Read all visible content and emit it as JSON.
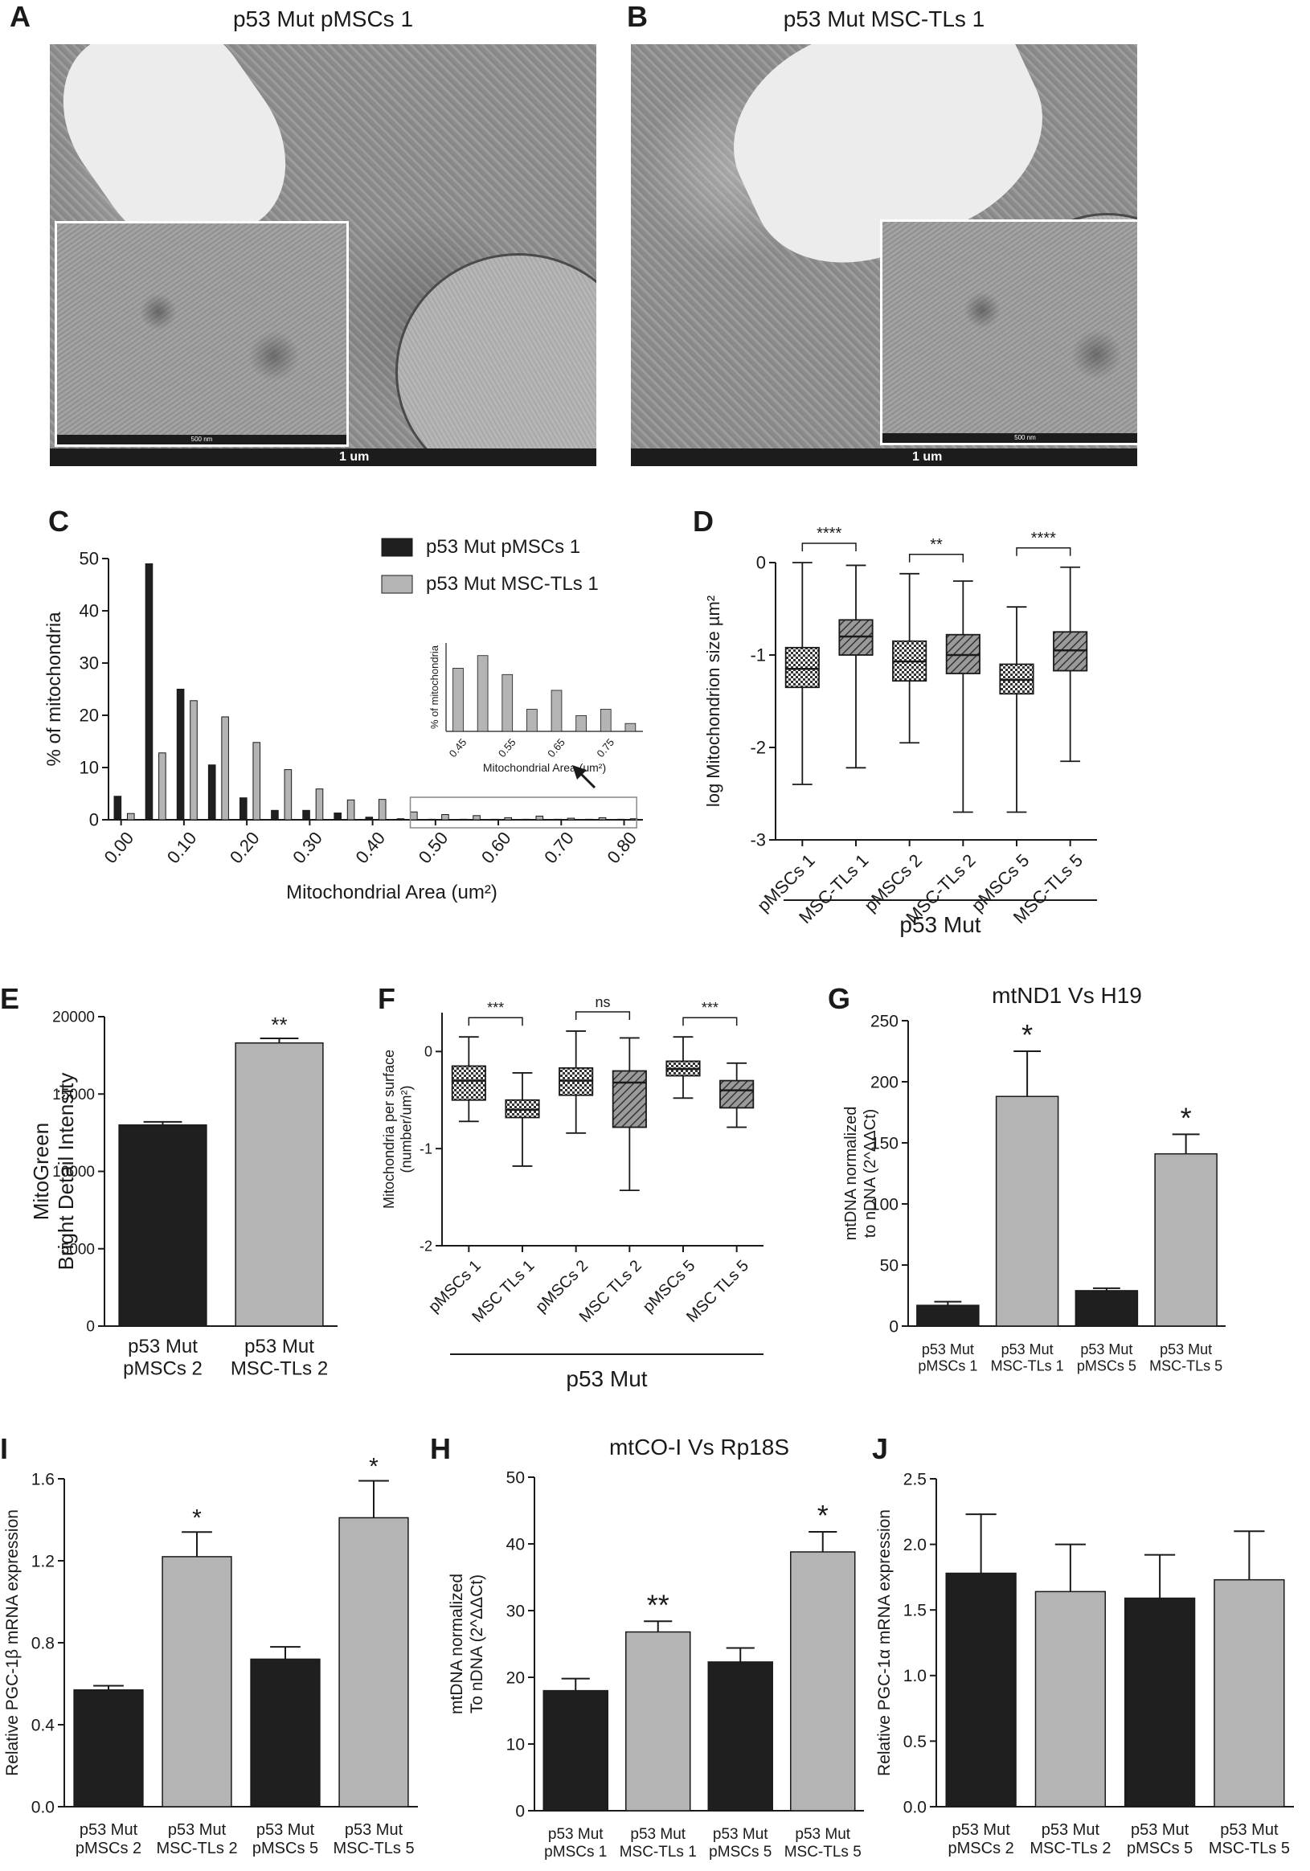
{
  "panels": {
    "A": {
      "label": "A",
      "title": "p53 Mut pMSCs 1",
      "scale": "1 um",
      "inset_scale": "500 nm"
    },
    "B": {
      "label": "B",
      "title": "p53 Mut MSC-TLs 1",
      "scale": "1 um",
      "inset_scale": "500 nm"
    },
    "C": {
      "label": "C"
    },
    "D": {
      "label": "D"
    },
    "E": {
      "label": "E"
    },
    "F": {
      "label": "F"
    },
    "G": {
      "label": "G"
    },
    "I": {
      "label": "I"
    },
    "H": {
      "label": "H"
    },
    "J": {
      "label": "J"
    }
  },
  "colors": {
    "dark": "#1f1f1f",
    "light": "#b4b4b4",
    "axis": "#1a1a1a"
  },
  "chart_data": [
    {
      "id": "C",
      "type": "bar",
      "categories": [
        "0.00",
        "0.05",
        "0.10",
        "0.15",
        "0.20",
        "0.25",
        "0.30",
        "0.35",
        "0.40",
        "0.45",
        "0.50",
        "0.55",
        "0.60",
        "0.65",
        "0.70",
        "0.75",
        "0.80"
      ],
      "tick_labels": [
        "0.00",
        "0.10",
        "0.20",
        "0.30",
        "0.40",
        "0.50",
        "0.60",
        "0.70",
        "0.80"
      ],
      "series": [
        {
          "name": "p53 Mut pMSCs 1",
          "color": "#1f1f1f",
          "values": [
            4.5,
            49,
            25,
            10.5,
            4.2,
            1.8,
            1.8,
            1.3,
            0.5,
            0.2,
            0.1,
            0.1,
            0.1,
            0.1,
            0.1,
            0.1,
            0.1
          ]
        },
        {
          "name": "p53 Mut MSC-TLs 1",
          "color": "#b4b4b4",
          "values": [
            1.2,
            12.8,
            22.8,
            19.7,
            14.8,
            9.6,
            5.9,
            3.8,
            3.9,
            1.5,
            1.0,
            0.8,
            0.4,
            0.7,
            0.3,
            0.4,
            0.2
          ]
        }
      ],
      "xlabel": "Mitochondrial Area (um²)",
      "ylabel": "% of mitochondria",
      "yticks": [
        "0",
        "10",
        "20",
        "30",
        "40",
        "50"
      ],
      "ylim": [
        0,
        50
      ],
      "legend": "top-right",
      "inset": {
        "type": "bar",
        "categories": [
          "0.45",
          "0.50",
          "0.55",
          "0.60",
          "0.65",
          "0.70",
          "0.75",
          "0.80"
        ],
        "tick_labels": [
          "0.45",
          "0.55",
          "0.65",
          "0.75"
        ],
        "values": [
          20,
          24,
          18,
          7,
          13,
          5,
          7,
          2.5
        ],
        "xlabel": "Mitochondrial Area (um²)",
        "ylabel": "% of mitochondria",
        "ylim": [
          0,
          28
        ]
      }
    },
    {
      "id": "D",
      "type": "boxplot",
      "categories": [
        "pMSCs 1",
        "MSC-TLs 1",
        "pMSCs 2",
        "MSC-TLs 2",
        "pMSCs 5",
        "MSC-TLs 5"
      ],
      "boxes": [
        {
          "min": -2.4,
          "q1": -1.35,
          "median": -1.15,
          "q3": -0.92,
          "max": 0.0,
          "fill": "dots"
        },
        {
          "min": -2.22,
          "q1": -1.0,
          "median": -0.8,
          "q3": -0.62,
          "max": -0.03,
          "fill": "hatch"
        },
        {
          "min": -1.95,
          "q1": -1.28,
          "median": -1.07,
          "q3": -0.85,
          "max": -0.12,
          "fill": "dots"
        },
        {
          "min": -2.7,
          "q1": -1.2,
          "median": -1.0,
          "q3": -0.78,
          "max": -0.2,
          "fill": "hatch"
        },
        {
          "min": -2.7,
          "q1": -1.42,
          "median": -1.27,
          "q3": -1.1,
          "max": -0.48,
          "fill": "dots"
        },
        {
          "min": -2.15,
          "q1": -1.17,
          "median": -0.95,
          "q3": -0.75,
          "max": -0.05,
          "fill": "hatch"
        }
      ],
      "significance": [
        {
          "from": 0,
          "to": 1,
          "label": "****"
        },
        {
          "from": 2,
          "to": 3,
          "label": "**"
        },
        {
          "from": 4,
          "to": 5,
          "label": "****"
        }
      ],
      "ylabel": "log Mitochondrion size µm²",
      "yticks": [
        "0",
        "-1",
        "-2",
        "-3"
      ],
      "ylim": [
        -3,
        0
      ],
      "group_label": "p53 Mut"
    },
    {
      "id": "E",
      "type": "bar",
      "categories": [
        "p53 Mut\npMSCs 2",
        "p53 Mut\nMSC-TLs 2"
      ],
      "values": [
        13000,
        18300
      ],
      "errors": [
        200,
        300
      ],
      "colors": [
        "#1f1f1f",
        "#b4b4b4"
      ],
      "significance": [
        "",
        "**"
      ],
      "ylabel": "MitoGreen\nBright Detail Intensity",
      "yticks": [
        "0",
        "5000",
        "10000",
        "15000",
        "20000"
      ],
      "ylim": [
        0,
        20000
      ]
    },
    {
      "id": "F",
      "type": "boxplot",
      "categories": [
        "pMSCs 1",
        "MSC TLs 1",
        "pMSCs 2",
        "MSC TLs 2",
        "pMSCs 5",
        "MSC TLs 5"
      ],
      "boxes": [
        {
          "min": -0.72,
          "q1": -0.5,
          "median": -0.3,
          "q3": -0.15,
          "max": 0.15,
          "fill": "dots"
        },
        {
          "min": -1.18,
          "q1": -0.68,
          "median": -0.6,
          "q3": -0.5,
          "max": -0.22,
          "fill": "dots"
        },
        {
          "min": -0.84,
          "q1": -0.45,
          "median": -0.3,
          "q3": -0.17,
          "max": 0.21,
          "fill": "dots"
        },
        {
          "min": -1.43,
          "q1": -0.78,
          "median": -0.32,
          "q3": -0.2,
          "max": 0.14,
          "fill": "hatch"
        },
        {
          "min": -0.48,
          "q1": -0.25,
          "median": -0.18,
          "q3": -0.1,
          "max": 0.15,
          "fill": "dots"
        },
        {
          "min": -0.78,
          "q1": -0.58,
          "median": -0.4,
          "q3": -0.3,
          "max": -0.12,
          "fill": "hatch"
        }
      ],
      "significance": [
        {
          "from": 0,
          "to": 1,
          "label": "***"
        },
        {
          "from": 2,
          "to": 3,
          "label": "ns"
        },
        {
          "from": 4,
          "to": 5,
          "label": "***"
        }
      ],
      "ylabel": "Mitochondria per surface\n(number/um²)",
      "yticks": [
        "0",
        "-1",
        "-2"
      ],
      "ylim": [
        -2,
        0.4
      ],
      "group_label": "p53 Mut"
    },
    {
      "id": "G",
      "type": "bar",
      "title": "mtND1 Vs H19",
      "categories": [
        "p53 Mut\npMSCs 1",
        "p53 Mut\nMSC-TLs 1",
        "p53 Mut\npMSCs 5",
        "p53 Mut\nMSC-TLs 5"
      ],
      "values": [
        17,
        188,
        29,
        141
      ],
      "errors": [
        3,
        37,
        2,
        16
      ],
      "colors": [
        "#1f1f1f",
        "#b4b4b4",
        "#1f1f1f",
        "#b4b4b4"
      ],
      "significance": [
        "",
        "*",
        "",
        "*"
      ],
      "ylabel": "mtDNA normalized\nto nDNA (2^ΔΔCt)",
      "yticks": [
        "0",
        "50",
        "100",
        "150",
        "200",
        "250"
      ],
      "ylim": [
        0,
        250
      ]
    },
    {
      "id": "I",
      "type": "bar",
      "categories": [
        "p53 Mut\npMSCs 2",
        "p53 Mut\nMSC-TLs 2",
        "p53 Mut\npMSCs 5",
        "p53 Mut\nMSC-TLs 5"
      ],
      "values": [
        0.57,
        1.22,
        0.72,
        1.41
      ],
      "errors": [
        0.02,
        0.12,
        0.06,
        0.18
      ],
      "colors": [
        "#1f1f1f",
        "#b4b4b4",
        "#1f1f1f",
        "#b4b4b4"
      ],
      "significance": [
        "",
        "*",
        "",
        "*"
      ],
      "ylabel": "Relative PGC-1β mRNA expression",
      "yticks": [
        "0.0",
        "0.4",
        "0.8",
        "1.2",
        "1.6"
      ],
      "ylim": [
        0,
        1.6
      ]
    },
    {
      "id": "H",
      "type": "bar",
      "title": "mtCO-I Vs Rp18S",
      "categories": [
        "p53 Mut\npMSCs 1",
        "p53 Mut\nMSC-TLs 1",
        "p53 Mut\npMSCs 5",
        "p53 Mut\nMSC-TLs 5"
      ],
      "values": [
        18,
        26.8,
        22.3,
        38.8
      ],
      "errors": [
        1.8,
        1.6,
        2.1,
        3.0
      ],
      "colors": [
        "#1f1f1f",
        "#b4b4b4",
        "#1f1f1f",
        "#b4b4b4"
      ],
      "significance": [
        "",
        "**",
        "",
        "*"
      ],
      "ylabel": "mtDNA normalized\nTo nDNA (2^ΔΔCt)",
      "yticks": [
        "0",
        "10",
        "20",
        "30",
        "40",
        "50"
      ],
      "ylim": [
        0,
        50
      ]
    },
    {
      "id": "J",
      "type": "bar",
      "categories": [
        "p53 Mut\npMSCs 2",
        "p53 Mut\nMSC-TLs 2",
        "p53 Mut\npMSCs 5",
        "p53 Mut\nMSC-TLs 5"
      ],
      "values": [
        1.78,
        1.64,
        1.59,
        1.73
      ],
      "errors": [
        0.45,
        0.36,
        0.33,
        0.37
      ],
      "colors": [
        "#1f1f1f",
        "#b4b4b4",
        "#1f1f1f",
        "#b4b4b4"
      ],
      "significance": [
        "",
        "",
        "",
        ""
      ],
      "ylabel": "Relative PGC-1α mRNA expression",
      "yticks": [
        "0.0",
        "0.5",
        "1.0",
        "1.5",
        "2.0",
        "2.5"
      ],
      "ylim": [
        0,
        2.5
      ]
    }
  ]
}
